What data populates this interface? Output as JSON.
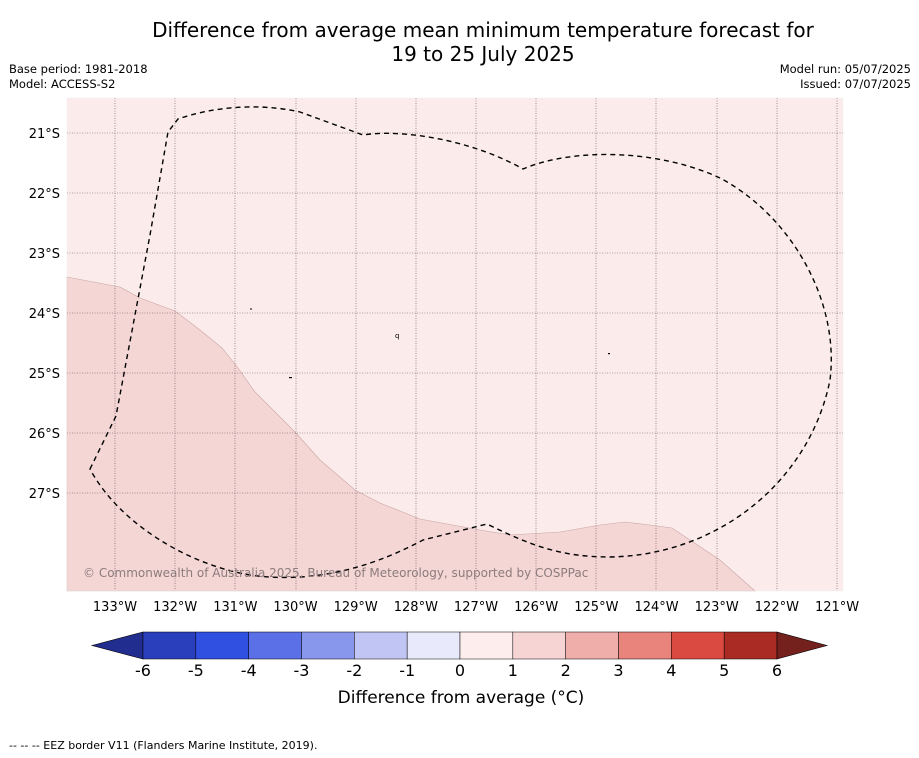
{
  "title": {
    "line1": "Difference from average mean minimum temperature forecast for",
    "line2": "19 to 25 July 2025"
  },
  "meta": {
    "base_period": "Base period: 1981-2018",
    "model": "Model: ACCESS-S2",
    "model_run": "Model run: 05/07/2025",
    "issued": "Issued: 07/07/2025"
  },
  "map": {
    "background_color": "#fbeceb",
    "warm_region_color": "#f4d6d5",
    "eez_line_color": "#000000",
    "copyright": "© Commonwealth of Australia 2025, Bureau of Meteorology, supported by COSPPac",
    "lat_labels": [
      "21°S",
      "22°S",
      "23°S",
      "24°S",
      "25°S",
      "26°S",
      "27°S"
    ],
    "lon_labels": [
      "133°W",
      "132°W",
      "131°W",
      "130°W",
      "129°W",
      "128°W",
      "127°W",
      "126°W",
      "125°W",
      "124°W",
      "123°W",
      "122°W",
      "121°W"
    ]
  },
  "colorbar": {
    "ticks": [
      "-6",
      "-5",
      "-4",
      "-3",
      "-2",
      "-1",
      "0",
      "1",
      "2",
      "3",
      "4",
      "5",
      "6"
    ],
    "colors": [
      "#222e8f",
      "#2a3fbb",
      "#3050e1",
      "#5b6fe6",
      "#8896ec",
      "#c0c5f4",
      "#e8eafb",
      "#fdeeed",
      "#f5d4d3",
      "#efaea9",
      "#e8847c",
      "#da4a40",
      "#aa2b24",
      "#74211d"
    ],
    "label": "Difference from average (°C)"
  },
  "footnote": "--  --  -- EEZ border V11 (Flanders Marine Institute, 2019)."
}
